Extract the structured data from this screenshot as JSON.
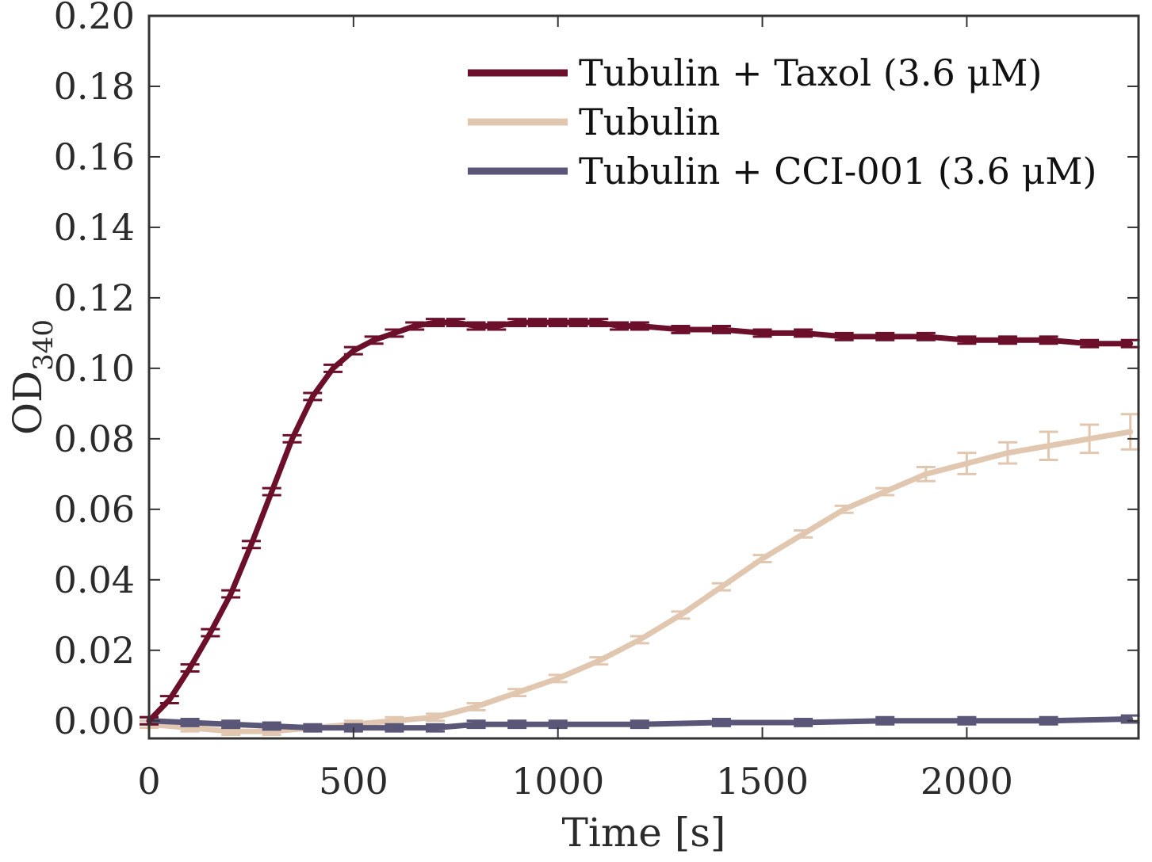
{
  "chart_data": {
    "type": "line",
    "title": "",
    "xlabel": "Time [s]",
    "ylabel_main": "OD",
    "ylabel_sub": "340",
    "xlim": [
      0,
      2420
    ],
    "ylim": [
      -0.005,
      0.2
    ],
    "xticks": [
      0,
      500,
      1000,
      1500,
      2000
    ],
    "xtick_labels": [
      "0",
      "500",
      "1000",
      "1500",
      "2000"
    ],
    "yticks": [
      0,
      0.02,
      0.04,
      0.06,
      0.08,
      0.1,
      0.12,
      0.14,
      0.16,
      0.18,
      0.2
    ],
    "ytick_labels": [
      "0.00",
      "0.02",
      "0.04",
      "0.06",
      "0.08",
      "0.10",
      "0.12",
      "0.14",
      "0.16",
      "0.18",
      "0.20"
    ],
    "grid": false,
    "legend_position": "top-right",
    "error_bars": true,
    "series": [
      {
        "name": "Tubulin + Taxol (3.6 μM)",
        "color": "#6b0f2b",
        "x": [
          0,
          50,
          100,
          150,
          200,
          250,
          300,
          350,
          400,
          450,
          500,
          550,
          600,
          650,
          700,
          750,
          800,
          850,
          900,
          950,
          1000,
          1050,
          1100,
          1150,
          1200,
          1300,
          1400,
          1500,
          1600,
          1700,
          1800,
          1900,
          2000,
          2100,
          2200,
          2300,
          2400
        ],
        "y": [
          0.0,
          0.006,
          0.015,
          0.025,
          0.036,
          0.05,
          0.065,
          0.08,
          0.092,
          0.1,
          0.105,
          0.108,
          0.11,
          0.112,
          0.113,
          0.113,
          0.112,
          0.112,
          0.113,
          0.113,
          0.113,
          0.113,
          0.113,
          0.112,
          0.112,
          0.111,
          0.111,
          0.11,
          0.11,
          0.109,
          0.109,
          0.109,
          0.108,
          0.108,
          0.108,
          0.107,
          0.107
        ],
        "err": [
          0.001,
          0.001,
          0.001,
          0.001,
          0.001,
          0.001,
          0.001,
          0.001,
          0.001,
          0.001,
          0.001,
          0.001,
          0.001,
          0.001,
          0.001,
          0.001,
          0.001,
          0.001,
          0.001,
          0.001,
          0.001,
          0.001,
          0.001,
          0.001,
          0.001,
          0.001,
          0.001,
          0.001,
          0.001,
          0.001,
          0.001,
          0.001,
          0.001,
          0.001,
          0.001,
          0.001,
          0.001
        ]
      },
      {
        "name": "Tubulin",
        "color": "#e2c7b0",
        "x": [
          0,
          100,
          200,
          300,
          400,
          500,
          600,
          700,
          800,
          900,
          1000,
          1100,
          1200,
          1300,
          1400,
          1500,
          1600,
          1700,
          1800,
          1900,
          2000,
          2100,
          2200,
          2300,
          2400
        ],
        "y": [
          -0.001,
          -0.002,
          -0.003,
          -0.003,
          -0.002,
          -0.001,
          0.0,
          0.001,
          0.004,
          0.008,
          0.012,
          0.017,
          0.023,
          0.03,
          0.038,
          0.046,
          0.053,
          0.06,
          0.065,
          0.07,
          0.073,
          0.076,
          0.078,
          0.08,
          0.082
        ],
        "err": [
          0.001,
          0.001,
          0.001,
          0.001,
          0.001,
          0.001,
          0.001,
          0.001,
          0.001,
          0.001,
          0.001,
          0.001,
          0.001,
          0.001,
          0.001,
          0.001,
          0.001,
          0.001,
          0.001,
          0.002,
          0.003,
          0.003,
          0.004,
          0.004,
          0.005
        ]
      },
      {
        "name": "Tubulin + CCI-001 (3.6 μM)",
        "color": "#5a5678",
        "x": [
          0,
          100,
          200,
          300,
          400,
          500,
          600,
          700,
          800,
          900,
          1000,
          1200,
          1400,
          1600,
          1800,
          2000,
          2200,
          2400
        ],
        "y": [
          0.0,
          -0.0005,
          -0.001,
          -0.0015,
          -0.002,
          -0.002,
          -0.002,
          -0.002,
          -0.001,
          -0.001,
          -0.001,
          -0.001,
          -0.0005,
          -0.0005,
          0.0,
          0.0,
          0.0,
          0.0005
        ],
        "err": [
          0.001,
          0.001,
          0.001,
          0.001,
          0.001,
          0.001,
          0.001,
          0.001,
          0.001,
          0.001,
          0.001,
          0.001,
          0.001,
          0.001,
          0.001,
          0.001,
          0.001,
          0.001
        ]
      }
    ]
  }
}
